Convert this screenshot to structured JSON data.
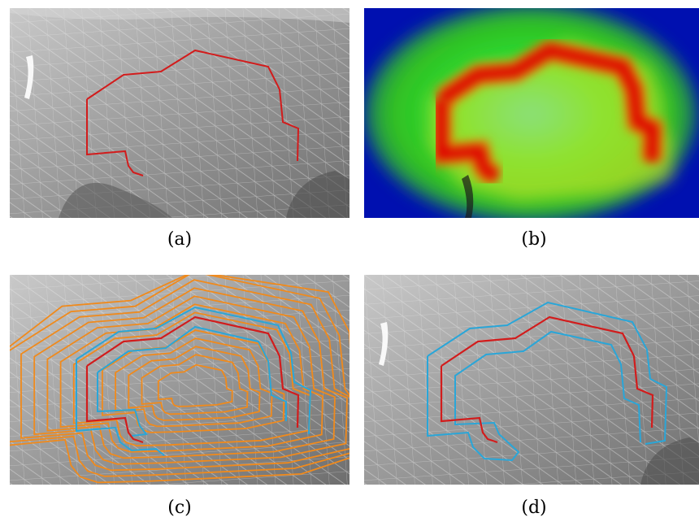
{
  "figure": {
    "panels": [
      {
        "id": "a",
        "caption": "(a)"
      },
      {
        "id": "b",
        "caption": "(b)"
      },
      {
        "id": "c",
        "caption": "(c)"
      },
      {
        "id": "d",
        "caption": "(d)"
      }
    ]
  },
  "colors": {
    "mesh_background": "#9a9a9a",
    "red_path": "#d21c1c",
    "blue_contour": "#2aa6d8",
    "orange_contour": "#f08a1c",
    "heat_high": "#e00000",
    "heat_low": "#0010b0"
  }
}
